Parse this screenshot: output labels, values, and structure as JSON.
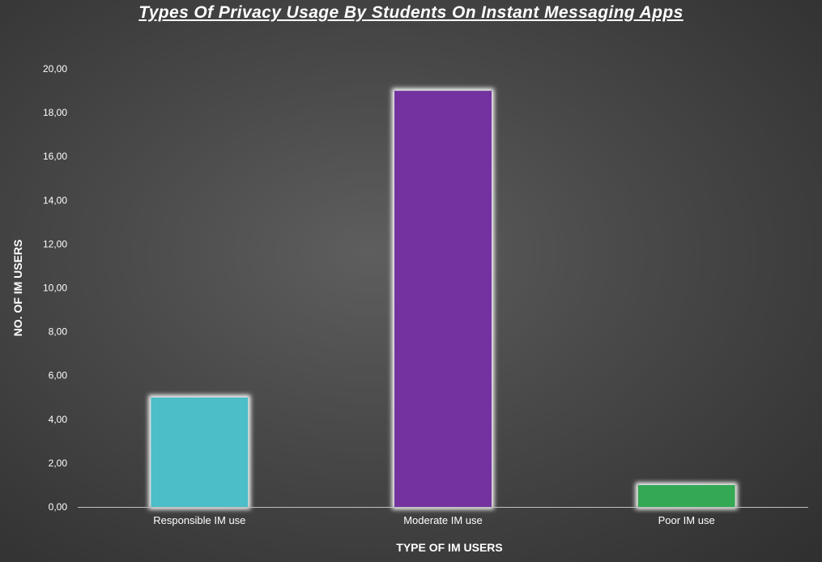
{
  "chart_data": {
    "type": "bar",
    "title": "Types Of Privacy Usage By Students On Instant Messaging Apps",
    "xlabel": "TYPE OF IM USERS",
    "ylabel": "NO. OF IM USERS",
    "categories": [
      "Responsible IM use",
      "Moderate IM use",
      "Poor IM use"
    ],
    "values": [
      5,
      19,
      1
    ],
    "colors": [
      "#4bbec8",
      "#7330a0",
      "#36a852"
    ],
    "ylim": [
      0,
      20
    ],
    "yticks": [
      0,
      2,
      4,
      6,
      8,
      10,
      12,
      14,
      16,
      18,
      20
    ],
    "ytick_labels": [
      "0,00",
      "2,00",
      "4,00",
      "6,00",
      "8,00",
      "10,00",
      "12,00",
      "14,00",
      "16,00",
      "18,00",
      "20,00"
    ],
    "grid": false,
    "legend": "none"
  }
}
